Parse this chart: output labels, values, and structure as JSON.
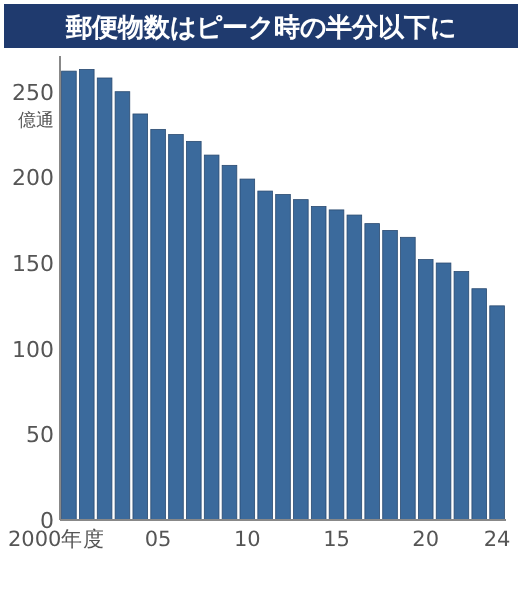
{
  "chart_data": {
    "type": "bar",
    "title": "郵便物数はピーク時の半分以下に",
    "ylabel": "億通",
    "categories": [
      "2000年度",
      null,
      null,
      null,
      null,
      "05",
      null,
      null,
      null,
      null,
      "10",
      null,
      null,
      null,
      null,
      "15",
      null,
      null,
      null,
      null,
      "20",
      null,
      null,
      null,
      "24"
    ],
    "values": [
      262,
      263,
      258,
      250,
      237,
      228,
      225,
      221,
      213,
      207,
      199,
      192,
      190,
      187,
      183,
      181,
      178,
      173,
      169,
      165,
      152,
      150,
      145,
      135,
      125
    ],
    "color": "#3b6a9c",
    "ylim": [
      0,
      265
    ],
    "yticks": [
      0,
      50,
      100,
      150,
      200,
      250
    ]
  }
}
